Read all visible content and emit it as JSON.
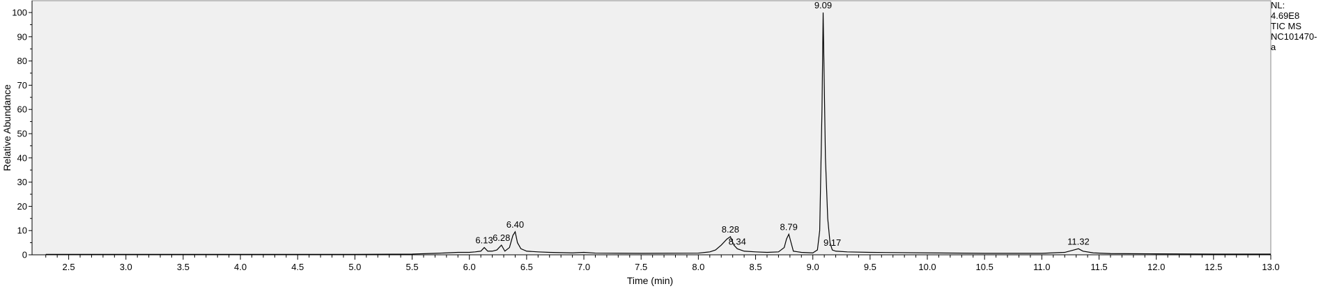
{
  "info": {
    "nl_label": "NL:",
    "nl_value": "4.69E8",
    "trace": "TIC  MS",
    "sample_line1": "NC101470-",
    "sample_line2": "a"
  },
  "chart_data": {
    "type": "line",
    "title": "",
    "xlabel": "Time (min)",
    "ylabel": "Relative Abundance",
    "xlim": [
      2.18,
      13.0
    ],
    "ylim": [
      0,
      100
    ],
    "x_ticks": [
      2.5,
      3.0,
      3.5,
      4.0,
      4.5,
      5.0,
      5.5,
      6.0,
      6.5,
      7.0,
      7.5,
      8.0,
      8.5,
      9.0,
      9.5,
      10.0,
      10.5,
      11.0,
      11.5,
      12.0,
      12.5,
      13.0
    ],
    "x_tick_labels": [
      "2.5",
      "3.0",
      "3.5",
      "4.0",
      "4.5",
      "5.0",
      "5.5",
      "6.0",
      "6.5",
      "7.0",
      "7.5",
      "8.0",
      "8.5",
      "9.0",
      "9.5",
      "10.0",
      "10.5",
      "11.0",
      "11.5",
      "12.0",
      "12.5",
      "13.0"
    ],
    "y_ticks": [
      0,
      10,
      20,
      30,
      40,
      50,
      60,
      70,
      80,
      90,
      100
    ],
    "y_tick_labels": [
      "0",
      "10",
      "20",
      "30",
      "40",
      "50",
      "60",
      "70",
      "80",
      "90",
      "100"
    ],
    "grid": false,
    "background": "#f0f0f0",
    "line_color": "#000000",
    "peaks": [
      {
        "x": 6.13,
        "y": 3.0,
        "label": "6.13"
      },
      {
        "x": 6.28,
        "y": 4.0,
        "label": "6.28"
      },
      {
        "x": 6.4,
        "y": 9.5,
        "label": "6.40"
      },
      {
        "x": 8.28,
        "y": 7.5,
        "label": "8.28"
      },
      {
        "x": 8.34,
        "y": 2.5,
        "label": "8.34"
      },
      {
        "x": 8.79,
        "y": 8.5,
        "label": "8.79"
      },
      {
        "x": 9.09,
        "y": 100,
        "label": "9.09"
      },
      {
        "x": 9.17,
        "y": 2.0,
        "label": "9.17"
      },
      {
        "x": 11.32,
        "y": 2.5,
        "label": "11.32"
      }
    ],
    "series": [
      {
        "x": [
          2.3,
          3.0,
          4.0,
          5.0,
          5.5,
          5.7,
          5.8,
          5.9,
          6.0,
          6.05,
          6.1,
          6.13,
          6.16,
          6.2,
          6.24,
          6.28,
          6.31,
          6.35,
          6.38,
          6.4,
          6.42,
          6.45,
          6.5,
          6.6,
          6.7,
          6.9,
          7.0,
          7.1,
          7.5,
          8.0,
          8.1,
          8.15,
          8.2,
          8.25,
          8.28,
          8.31,
          8.34,
          8.4,
          8.5,
          8.6,
          8.7,
          8.75,
          8.77,
          8.79,
          8.81,
          8.83,
          8.9,
          9.0,
          9.04,
          9.06,
          9.08,
          9.09,
          9.1,
          9.11,
          9.13,
          9.15,
          9.17,
          9.2,
          9.3,
          9.5,
          10.0,
          10.5,
          11.0,
          11.2,
          11.28,
          11.32,
          11.36,
          11.45,
          11.6,
          12.0,
          12.5,
          13.0
        ],
        "y": [
          0.2,
          0.2,
          0.2,
          0.2,
          0.3,
          0.6,
          0.8,
          1.0,
          1.0,
          1.2,
          1.5,
          3.0,
          1.5,
          1.5,
          2.0,
          4.0,
          1.5,
          3.0,
          8.0,
          9.5,
          5.0,
          2.5,
          1.5,
          1.2,
          1.0,
          0.8,
          1.0,
          0.7,
          0.6,
          0.7,
          1.2,
          2.0,
          4.0,
          6.5,
          7.5,
          4.0,
          2.5,
          1.5,
          1.2,
          1.0,
          1.2,
          3.0,
          6.5,
          8.5,
          5.0,
          1.5,
          1.0,
          0.8,
          2.0,
          10.0,
          60.0,
          100,
          70.0,
          40.0,
          15.0,
          5.0,
          2.0,
          1.5,
          1.2,
          1.0,
          0.8,
          0.6,
          0.6,
          1.0,
          2.0,
          2.5,
          1.5,
          0.8,
          0.5,
          0.4,
          0.3,
          0.3
        ]
      }
    ]
  }
}
